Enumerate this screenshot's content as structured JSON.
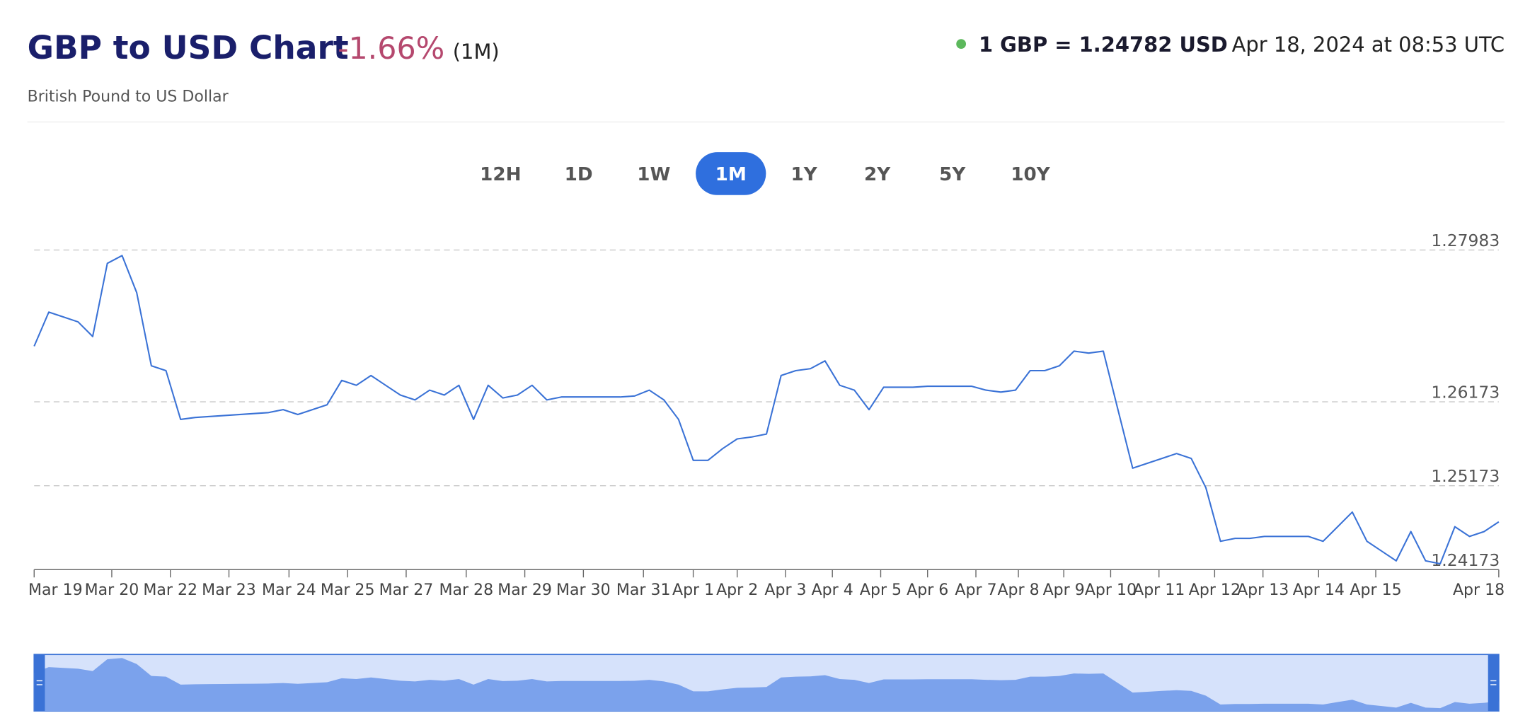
{
  "header": {
    "title": "GBP to USD Chart",
    "change": "-1.66%",
    "period": "(1M)",
    "subtitle": "British Pound to US Dollar",
    "rate": "1 GBP = 1.24782 USD",
    "timestamp": "Apr 18, 2024 at 08:53 UTC"
  },
  "range_buttons": {
    "items": [
      "12H",
      "1D",
      "1W",
      "1M",
      "1Y",
      "2Y",
      "5Y",
      "10Y"
    ],
    "active_index": 3
  },
  "chart_data": {
    "type": "line",
    "color": "#3a72d6",
    "x": [
      0,
      1,
      2,
      3,
      4,
      5,
      6,
      7,
      8,
      9,
      10,
      11,
      12,
      13,
      14,
      15,
      16,
      17,
      18,
      19,
      20,
      21,
      22,
      23,
      24,
      25,
      26,
      27,
      28,
      29,
      30,
      31,
      32,
      33,
      34,
      35,
      36,
      37,
      38,
      39,
      40,
      41,
      42,
      43,
      44,
      45,
      46,
      47,
      48,
      49,
      50,
      51,
      52,
      53,
      54,
      55,
      56,
      57,
      58,
      59,
      60,
      61,
      62,
      63,
      64,
      65,
      66,
      67,
      68,
      69,
      70,
      71,
      72,
      73,
      74,
      75,
      76,
      77,
      78,
      79,
      80,
      81,
      82,
      83,
      84,
      85,
      86,
      87,
      88,
      89,
      90,
      91,
      92,
      93,
      94,
      95,
      96,
      97,
      98,
      99,
      100
    ],
    "values": [
      1.26836,
      1.27243,
      1.27185,
      1.27127,
      1.26952,
      1.27824,
      1.27917,
      1.27475,
      1.26603,
      1.26545,
      1.25964,
      1.25987,
      1.25999,
      1.2601,
      1.26022,
      1.26033,
      1.26045,
      1.2608,
      1.26022,
      1.2608,
      1.26138,
      1.26429,
      1.26371,
      1.26487,
      1.26371,
      1.26254,
      1.26196,
      1.26313,
      1.26254,
      1.26371,
      1.25964,
      1.26371,
      1.2622,
      1.26254,
      1.26371,
      1.26196,
      1.26231,
      1.26231,
      1.26231,
      1.26231,
      1.26231,
      1.26243,
      1.26313,
      1.26196,
      1.25964,
      1.25475,
      1.25475,
      1.25615,
      1.25731,
      1.25754,
      1.25789,
      1.26487,
      1.26545,
      1.26568,
      1.26661,
      1.26371,
      1.26313,
      1.2608,
      1.26347,
      1.26347,
      1.26347,
      1.26359,
      1.26359,
      1.26359,
      1.26359,
      1.26313,
      1.26289,
      1.26313,
      1.26545,
      1.26545,
      1.26603,
      1.26778,
      1.26754,
      1.26778,
      1.2608,
      1.25382,
      1.2544,
      1.25499,
      1.25557,
      1.25499,
      1.2515,
      1.2451,
      1.24545,
      1.24545,
      1.24568,
      1.24568,
      1.24568,
      1.24568,
      1.2451,
      1.24685,
      1.24859,
      1.2451,
      1.24394,
      1.24278,
      1.24627,
      1.24278,
      1.24243,
      1.24685,
      1.24568,
      1.24627,
      1.24743
    ],
    "xlim": [
      0,
      100
    ],
    "xticks": [
      {
        "value": 0,
        "label": "Mar 19"
      },
      {
        "value": 5.3,
        "label": "Mar 20"
      },
      {
        "value": 9.3,
        "label": "Mar 22"
      },
      {
        "value": 13.3,
        "label": "Mar 23"
      },
      {
        "value": 17.4,
        "label": "Mar 24"
      },
      {
        "value": 21.4,
        "label": "Mar 25"
      },
      {
        "value": 25.4,
        "label": "Mar 27"
      },
      {
        "value": 29.5,
        "label": "Mar 28"
      },
      {
        "value": 33.5,
        "label": "Mar 29"
      },
      {
        "value": 37.5,
        "label": "Mar 30"
      },
      {
        "value": 41.6,
        "label": "Mar 31"
      },
      {
        "value": 45,
        "label": "Apr 1"
      },
      {
        "value": 48,
        "label": "Apr 2"
      },
      {
        "value": 51.3,
        "label": "Apr 3"
      },
      {
        "value": 54.5,
        "label": "Apr 4"
      },
      {
        "value": 57.8,
        "label": "Apr 5"
      },
      {
        "value": 61,
        "label": "Apr 6"
      },
      {
        "value": 64.3,
        "label": "Apr 7"
      },
      {
        "value": 67.2,
        "label": "Apr 8"
      },
      {
        "value": 70.3,
        "label": "Apr 9"
      },
      {
        "value": 73.5,
        "label": "Apr 10"
      },
      {
        "value": 76.8,
        "label": "Apr 11"
      },
      {
        "value": 80.6,
        "label": "Apr 12"
      },
      {
        "value": 83.9,
        "label": "Apr 13"
      },
      {
        "value": 87.7,
        "label": "Apr 14"
      },
      {
        "value": 91.6,
        "label": "Apr 15"
      },
      {
        "value": 100,
        "label": "Apr 18"
      }
    ],
    "ylim": [
      1.24173,
      1.28173
    ],
    "yticks": [
      1.24173,
      1.25173,
      1.26173,
      1.27983
    ],
    "grid": true
  }
}
